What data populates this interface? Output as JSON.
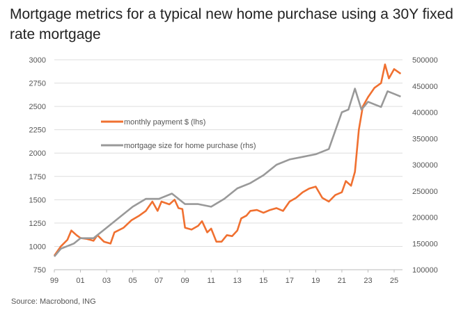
{
  "chart_data": {
    "type": "line",
    "title": "Mortgage metrics for a typical new home purchase using a 30Y fixed rate mortgage",
    "source": "Source: Macrobond, ING",
    "x_ticks": [
      "99",
      "01",
      "03",
      "05",
      "07",
      "09",
      "11",
      "13",
      "15",
      "17",
      "19",
      "21",
      "23",
      "25"
    ],
    "xlim": [
      1999,
      2025.7
    ],
    "y_left": {
      "ylim": [
        750,
        3000
      ],
      "ticks": [
        "750",
        "1000",
        "1250",
        "1500",
        "1750",
        "2000",
        "2250",
        "2500",
        "2750",
        "3000"
      ]
    },
    "y_right": {
      "ylim": [
        100000,
        500000
      ],
      "ticks": [
        "100000",
        "150000",
        "200000",
        "250000",
        "300000",
        "350000",
        "400000",
        "450000",
        "500000"
      ]
    },
    "grid": true,
    "legend_placement": "upper-left-center",
    "series": [
      {
        "name": "monthly payment $ (lhs)",
        "axis": "left",
        "color": "#f07030",
        "x": [
          1999,
          1999.5,
          2000,
          2000.3,
          2000.7,
          2001,
          2001.5,
          2002,
          2002.3,
          2002.8,
          2003.3,
          2003.6,
          2004.3,
          2004.9,
          2005.5,
          2006,
          2006.5,
          2006.9,
          2007.2,
          2007.8,
          2008.2,
          2008.5,
          2008.8,
          2009,
          2009.5,
          2010,
          2010.3,
          2010.7,
          2011,
          2011.4,
          2011.8,
          2012.2,
          2012.6,
          2013,
          2013.3,
          2013.7,
          2014,
          2014.5,
          2015,
          2015.5,
          2016,
          2016.5,
          2017,
          2017.5,
          2018,
          2018.5,
          2019,
          2019.5,
          2020,
          2020.5,
          2021,
          2021.3,
          2021.7,
          2022,
          2022.3,
          2022.6,
          2023,
          2023.5,
          2024,
          2024.3,
          2024.6,
          2025,
          2025.5
        ],
        "values": [
          900,
          1000,
          1070,
          1170,
          1120,
          1090,
          1080,
          1060,
          1120,
          1050,
          1030,
          1150,
          1200,
          1280,
          1330,
          1380,
          1480,
          1380,
          1480,
          1450,
          1500,
          1410,
          1400,
          1200,
          1180,
          1220,
          1270,
          1150,
          1190,
          1050,
          1050,
          1120,
          1110,
          1170,
          1300,
          1330,
          1380,
          1390,
          1360,
          1390,
          1410,
          1380,
          1480,
          1520,
          1580,
          1620,
          1640,
          1520,
          1480,
          1550,
          1580,
          1700,
          1650,
          1800,
          2250,
          2500,
          2600,
          2700,
          2750,
          2950,
          2800,
          2900,
          2850
        ]
      },
      {
        "name": "mortgage size for home purchase (rhs)",
        "axis": "right",
        "color": "#999999",
        "x": [
          1999,
          1999.5,
          2000.5,
          2001,
          2002,
          2003,
          2004,
          2005,
          2006,
          2007,
          2008,
          2009,
          2010,
          2011,
          2012,
          2013,
          2014,
          2015,
          2016,
          2017,
          2018,
          2019,
          2020,
          2020.5,
          2021,
          2021.5,
          2022,
          2022.5,
          2023,
          2023.5,
          2024,
          2024.5,
          2025,
          2025.5
        ],
        "values": [
          125000,
          140000,
          150000,
          160000,
          160000,
          180000,
          200000,
          220000,
          235000,
          235000,
          245000,
          225000,
          225000,
          220000,
          235000,
          255000,
          265000,
          280000,
          300000,
          310000,
          315000,
          320000,
          330000,
          365000,
          400000,
          405000,
          445000,
          405000,
          420000,
          415000,
          410000,
          440000,
          435000,
          430000
        ]
      }
    ]
  }
}
